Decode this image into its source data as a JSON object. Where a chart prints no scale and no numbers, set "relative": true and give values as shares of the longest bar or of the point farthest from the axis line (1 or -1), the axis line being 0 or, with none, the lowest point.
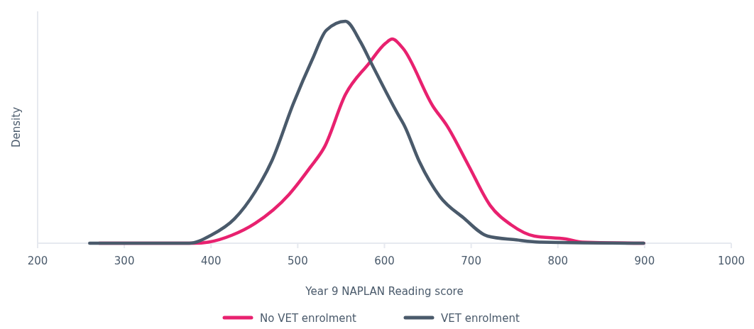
{
  "chart_data": {
    "type": "line",
    "relative": true,
    "xlabel": "Year 9 NAPLAN Reading score",
    "ylabel": "Density",
    "xlim": [
      200,
      1000
    ],
    "xticks": [
      200,
      300,
      400,
      500,
      600,
      700,
      800,
      900,
      1000
    ],
    "legend": "bottom",
    "line_style": "solid",
    "series": [
      {
        "name": "No VET enrolment",
        "color": "#e8216f",
        "x": [
          271,
          380,
          397,
          424,
          451,
          490,
          514,
          531,
          555,
          582,
          601,
          609,
          621,
          656,
          672,
          697,
          722,
          746,
          773,
          809,
          828,
          899
        ],
        "values": [
          0,
          0,
          0.005,
          0.036,
          0.09,
          0.22,
          0.34,
          0.435,
          0.67,
          0.81,
          0.9,
          0.92,
          0.88,
          0.617,
          0.53,
          0.35,
          0.17,
          0.083,
          0.032,
          0.019,
          0.005,
          0
        ]
      },
      {
        "name": "VET enrolment",
        "color": "#4a5a6b",
        "x": [
          260,
          375,
          400,
          427,
          451,
          470,
          495,
          517,
          533,
          555,
          572,
          585,
          615,
          623,
          640,
          664,
          691,
          719,
          752,
          779,
          899
        ],
        "values": [
          0,
          0,
          0.036,
          0.11,
          0.233,
          0.37,
          0.63,
          0.83,
          0.96,
          1,
          0.91,
          0.81,
          0.585,
          0.53,
          0.37,
          0.21,
          0.115,
          0.032,
          0.015,
          0.005,
          0
        ]
      }
    ]
  }
}
